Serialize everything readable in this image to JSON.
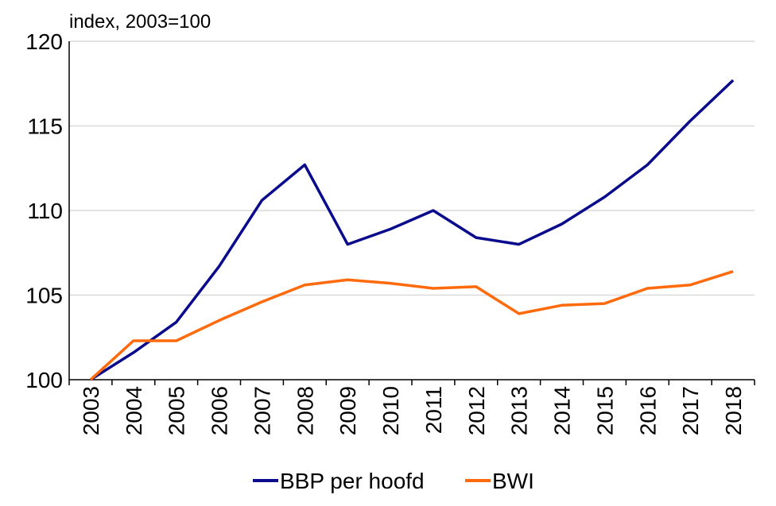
{
  "chart_data": {
    "type": "line",
    "title": "",
    "unit_label": "index, 2003=100",
    "xlabel": "",
    "ylabel": "",
    "categories": [
      "2003",
      "2004",
      "2005",
      "2006",
      "2007",
      "2008",
      "2009",
      "2010",
      "2011",
      "2012",
      "2013",
      "2014",
      "2015",
      "2016",
      "2017",
      "2018"
    ],
    "ylim": [
      100,
      120
    ],
    "yticks": [
      100,
      105,
      110,
      115,
      120
    ],
    "grid": true,
    "legend_position": "bottom",
    "series": [
      {
        "name": "BBP per hoofd",
        "color": "#0a0a8c",
        "values": [
          100.0,
          101.6,
          103.4,
          106.7,
          110.6,
          112.7,
          108.0,
          108.9,
          110.0,
          108.4,
          108.0,
          109.2,
          110.8,
          112.7,
          115.3,
          117.7
        ]
      },
      {
        "name": "BWI",
        "color": "#ff6a0d",
        "values": [
          100.0,
          102.3,
          102.3,
          103.5,
          104.6,
          105.6,
          105.9,
          105.7,
          105.4,
          105.5,
          103.9,
          104.4,
          104.5,
          105.4,
          105.6,
          106.4
        ]
      }
    ]
  }
}
